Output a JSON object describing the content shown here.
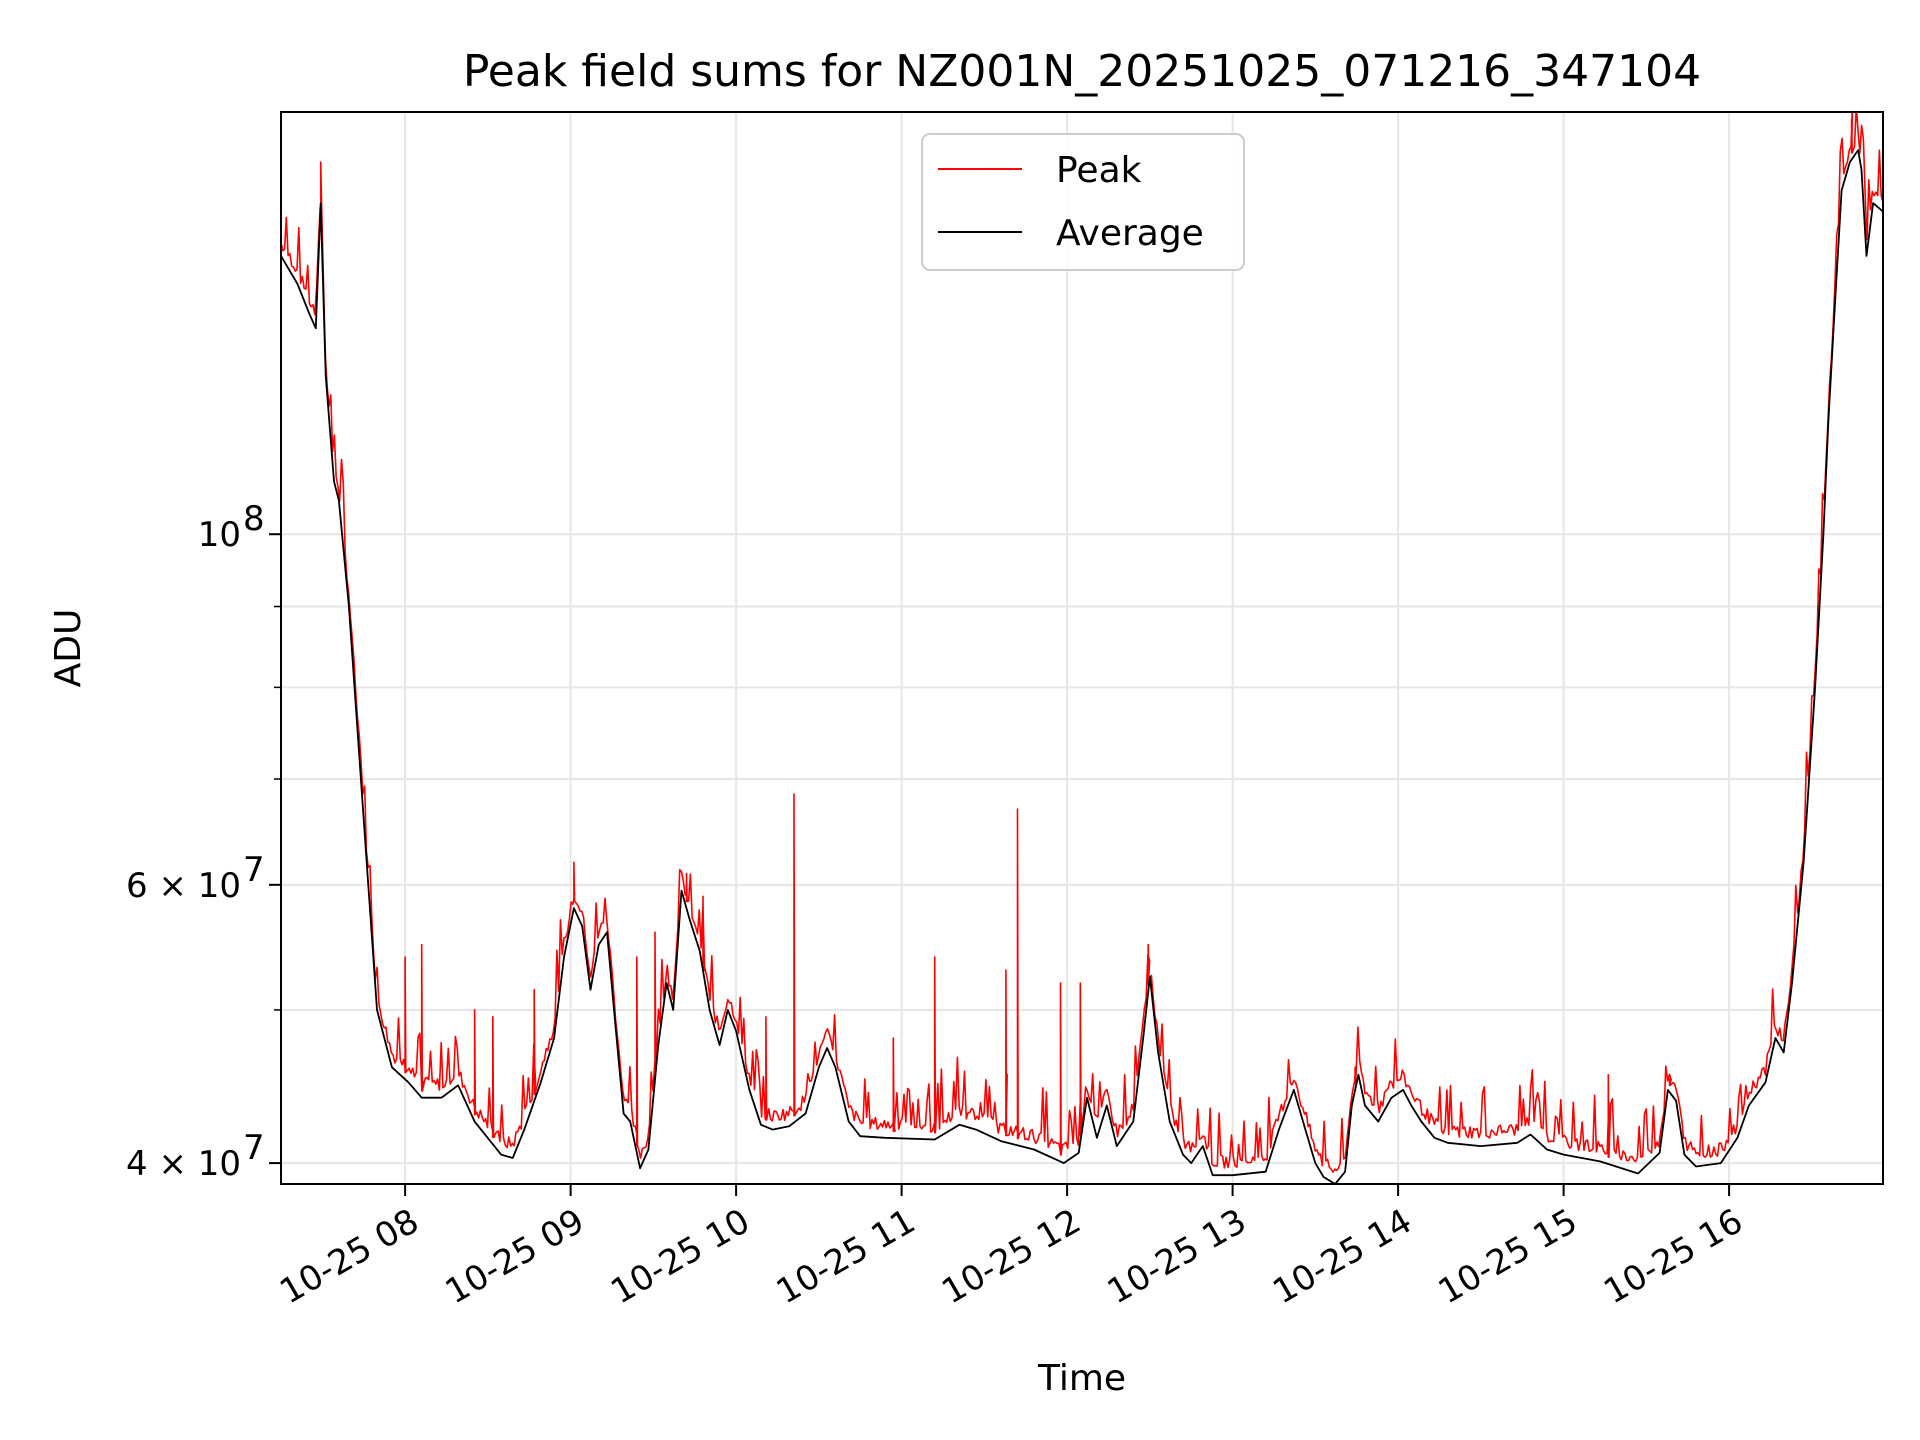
{
  "chart_data": {
    "type": "line",
    "title": "Peak field sums for NZ001N_20251025_071216_347104",
    "xlabel": "Time",
    "ylabel": "ADU",
    "yscale": "log",
    "ylim": [
      38800000,
      185000000
    ],
    "xlim_hours": [
      7.25,
      16.93
    ],
    "grid": true,
    "legend_position": "top-center",
    "x_ticks": [
      {
        "h": 8,
        "label": "10-25 08"
      },
      {
        "h": 9,
        "label": "10-25 09"
      },
      {
        "h": 10,
        "label": "10-25 10"
      },
      {
        "h": 11,
        "label": "10-25 11"
      },
      {
        "h": 12,
        "label": "10-25 12"
      },
      {
        "h": 13,
        "label": "10-25 13"
      },
      {
        "h": 14,
        "label": "10-25 14"
      },
      {
        "h": 15,
        "label": "10-25 15"
      },
      {
        "h": 16,
        "label": "10-25 16"
      }
    ],
    "y_major_ticks": [
      {
        "v": 40000000,
        "base": "4 × 10",
        "exp": "7"
      },
      {
        "v": 60000000,
        "base": "6 × 10",
        "exp": "7"
      },
      {
        "v": 100000000,
        "base": "10",
        "exp": "8"
      }
    ],
    "y_minor_grid": [
      50000000,
      70000000,
      80000000,
      90000000
    ],
    "series": [
      {
        "name": "Peak",
        "color": "#ff0000",
        "spikes": [
          [
            7.49,
            172000000
          ],
          [
            8.0,
            54000000
          ],
          [
            8.1,
            55000000
          ],
          [
            8.42,
            50000000
          ],
          [
            8.53,
            49500000
          ],
          [
            8.78,
            51500000
          ],
          [
            9.02,
            62000000
          ],
          [
            9.4,
            54000000
          ],
          [
            9.51,
            56000000
          ],
          [
            9.7,
            61000000
          ],
          [
            9.8,
            59000000
          ],
          [
            10.18,
            49500000
          ],
          [
            10.35,
            68500000
          ],
          [
            10.95,
            48000000
          ],
          [
            11.2,
            54000000
          ],
          [
            11.63,
            53000000
          ],
          [
            11.7,
            67000000
          ],
          [
            11.96,
            52000000
          ],
          [
            12.08,
            52000000
          ],
          [
            12.49,
            55000000
          ],
          [
            13.74,
            46000000
          ],
          [
            15.27,
            45500000
          ],
          [
            15.64,
            45200000
          ],
          [
            16.74,
            183000000
          ]
        ]
      },
      {
        "name": "Average",
        "color": "#000000",
        "points": [
          [
            7.25,
            150000000
          ],
          [
            7.35,
            144000000
          ],
          [
            7.42,
            138000000
          ],
          [
            7.46,
            135000000
          ],
          [
            7.49,
            162000000
          ],
          [
            7.52,
            126000000
          ],
          [
            7.57,
            108000000
          ],
          [
            7.6,
            105000000
          ],
          [
            7.66,
            90000000
          ],
          [
            7.75,
            66000000
          ],
          [
            7.83,
            50000000
          ],
          [
            7.92,
            46000000
          ],
          [
            8.02,
            45000000
          ],
          [
            8.1,
            44000000
          ],
          [
            8.22,
            44000000
          ],
          [
            8.32,
            44800000
          ],
          [
            8.42,
            42500000
          ],
          [
            8.58,
            40500000
          ],
          [
            8.65,
            40300000
          ],
          [
            8.72,
            42000000
          ],
          [
            8.82,
            45000000
          ],
          [
            8.9,
            48000000
          ],
          [
            8.96,
            54000000
          ],
          [
            9.02,
            58000000
          ],
          [
            9.07,
            56500000
          ],
          [
            9.12,
            51500000
          ],
          [
            9.17,
            55000000
          ],
          [
            9.22,
            56000000
          ],
          [
            9.27,
            49000000
          ],
          [
            9.32,
            43000000
          ],
          [
            9.36,
            42500000
          ],
          [
            9.42,
            39700000
          ],
          [
            9.47,
            40800000
          ],
          [
            9.53,
            47500000
          ],
          [
            9.58,
            52000000
          ],
          [
            9.62,
            50000000
          ],
          [
            9.67,
            59500000
          ],
          [
            9.72,
            57000000
          ],
          [
            9.78,
            54500000
          ],
          [
            9.84,
            50000000
          ],
          [
            9.9,
            47500000
          ],
          [
            9.95,
            50000000
          ],
          [
            10.0,
            48500000
          ],
          [
            10.08,
            44500000
          ],
          [
            10.15,
            42300000
          ],
          [
            10.22,
            42000000
          ],
          [
            10.32,
            42200000
          ],
          [
            10.42,
            43000000
          ],
          [
            10.5,
            46000000
          ],
          [
            10.55,
            47300000
          ],
          [
            10.6,
            46000000
          ],
          [
            10.68,
            42500000
          ],
          [
            10.75,
            41600000
          ],
          [
            10.9,
            41500000
          ],
          [
            11.2,
            41400000
          ],
          [
            11.35,
            42300000
          ],
          [
            11.45,
            42000000
          ],
          [
            11.6,
            41300000
          ],
          [
            11.8,
            40800000
          ],
          [
            11.98,
            40000000
          ],
          [
            12.07,
            40600000
          ],
          [
            12.12,
            44000000
          ],
          [
            12.18,
            41500000
          ],
          [
            12.24,
            43500000
          ],
          [
            12.3,
            41000000
          ],
          [
            12.4,
            42500000
          ],
          [
            12.46,
            48000000
          ],
          [
            12.5,
            52500000
          ],
          [
            12.55,
            47000000
          ],
          [
            12.62,
            42500000
          ],
          [
            12.7,
            40500000
          ],
          [
            12.75,
            40000000
          ],
          [
            12.82,
            41000000
          ],
          [
            12.88,
            39300000
          ],
          [
            13.0,
            39300000
          ],
          [
            13.2,
            39500000
          ],
          [
            13.28,
            42000000
          ],
          [
            13.37,
            44500000
          ],
          [
            13.44,
            42000000
          ],
          [
            13.5,
            40000000
          ],
          [
            13.55,
            39200000
          ],
          [
            13.62,
            38800000
          ],
          [
            13.68,
            39500000
          ],
          [
            13.72,
            43500000
          ],
          [
            13.76,
            45500000
          ],
          [
            13.8,
            43500000
          ],
          [
            13.88,
            42500000
          ],
          [
            13.96,
            44000000
          ],
          [
            14.03,
            44500000
          ],
          [
            14.08,
            43500000
          ],
          [
            14.14,
            42500000
          ],
          [
            14.22,
            41500000
          ],
          [
            14.3,
            41200000
          ],
          [
            14.5,
            41000000
          ],
          [
            14.72,
            41200000
          ],
          [
            14.8,
            41700000
          ],
          [
            14.9,
            40800000
          ],
          [
            15.0,
            40500000
          ],
          [
            15.22,
            40100000
          ],
          [
            15.45,
            39400000
          ],
          [
            15.58,
            40600000
          ],
          [
            15.63,
            44500000
          ],
          [
            15.68,
            43800000
          ],
          [
            15.73,
            40500000
          ],
          [
            15.8,
            39800000
          ],
          [
            15.95,
            40000000
          ],
          [
            16.05,
            41500000
          ],
          [
            16.12,
            43500000
          ],
          [
            16.22,
            45000000
          ],
          [
            16.28,
            48000000
          ],
          [
            16.33,
            47000000
          ],
          [
            16.38,
            52000000
          ],
          [
            16.45,
            62000000
          ],
          [
            16.52,
            80000000
          ],
          [
            16.57,
            100000000
          ],
          [
            16.6,
            118000000
          ],
          [
            16.64,
            140000000
          ],
          [
            16.68,
            165000000
          ],
          [
            16.73,
            172000000
          ],
          [
            16.78,
            175000000
          ],
          [
            16.8,
            170000000
          ],
          [
            16.83,
            150000000
          ],
          [
            16.87,
            162000000
          ],
          [
            16.93,
            160000000
          ]
        ]
      }
    ]
  }
}
